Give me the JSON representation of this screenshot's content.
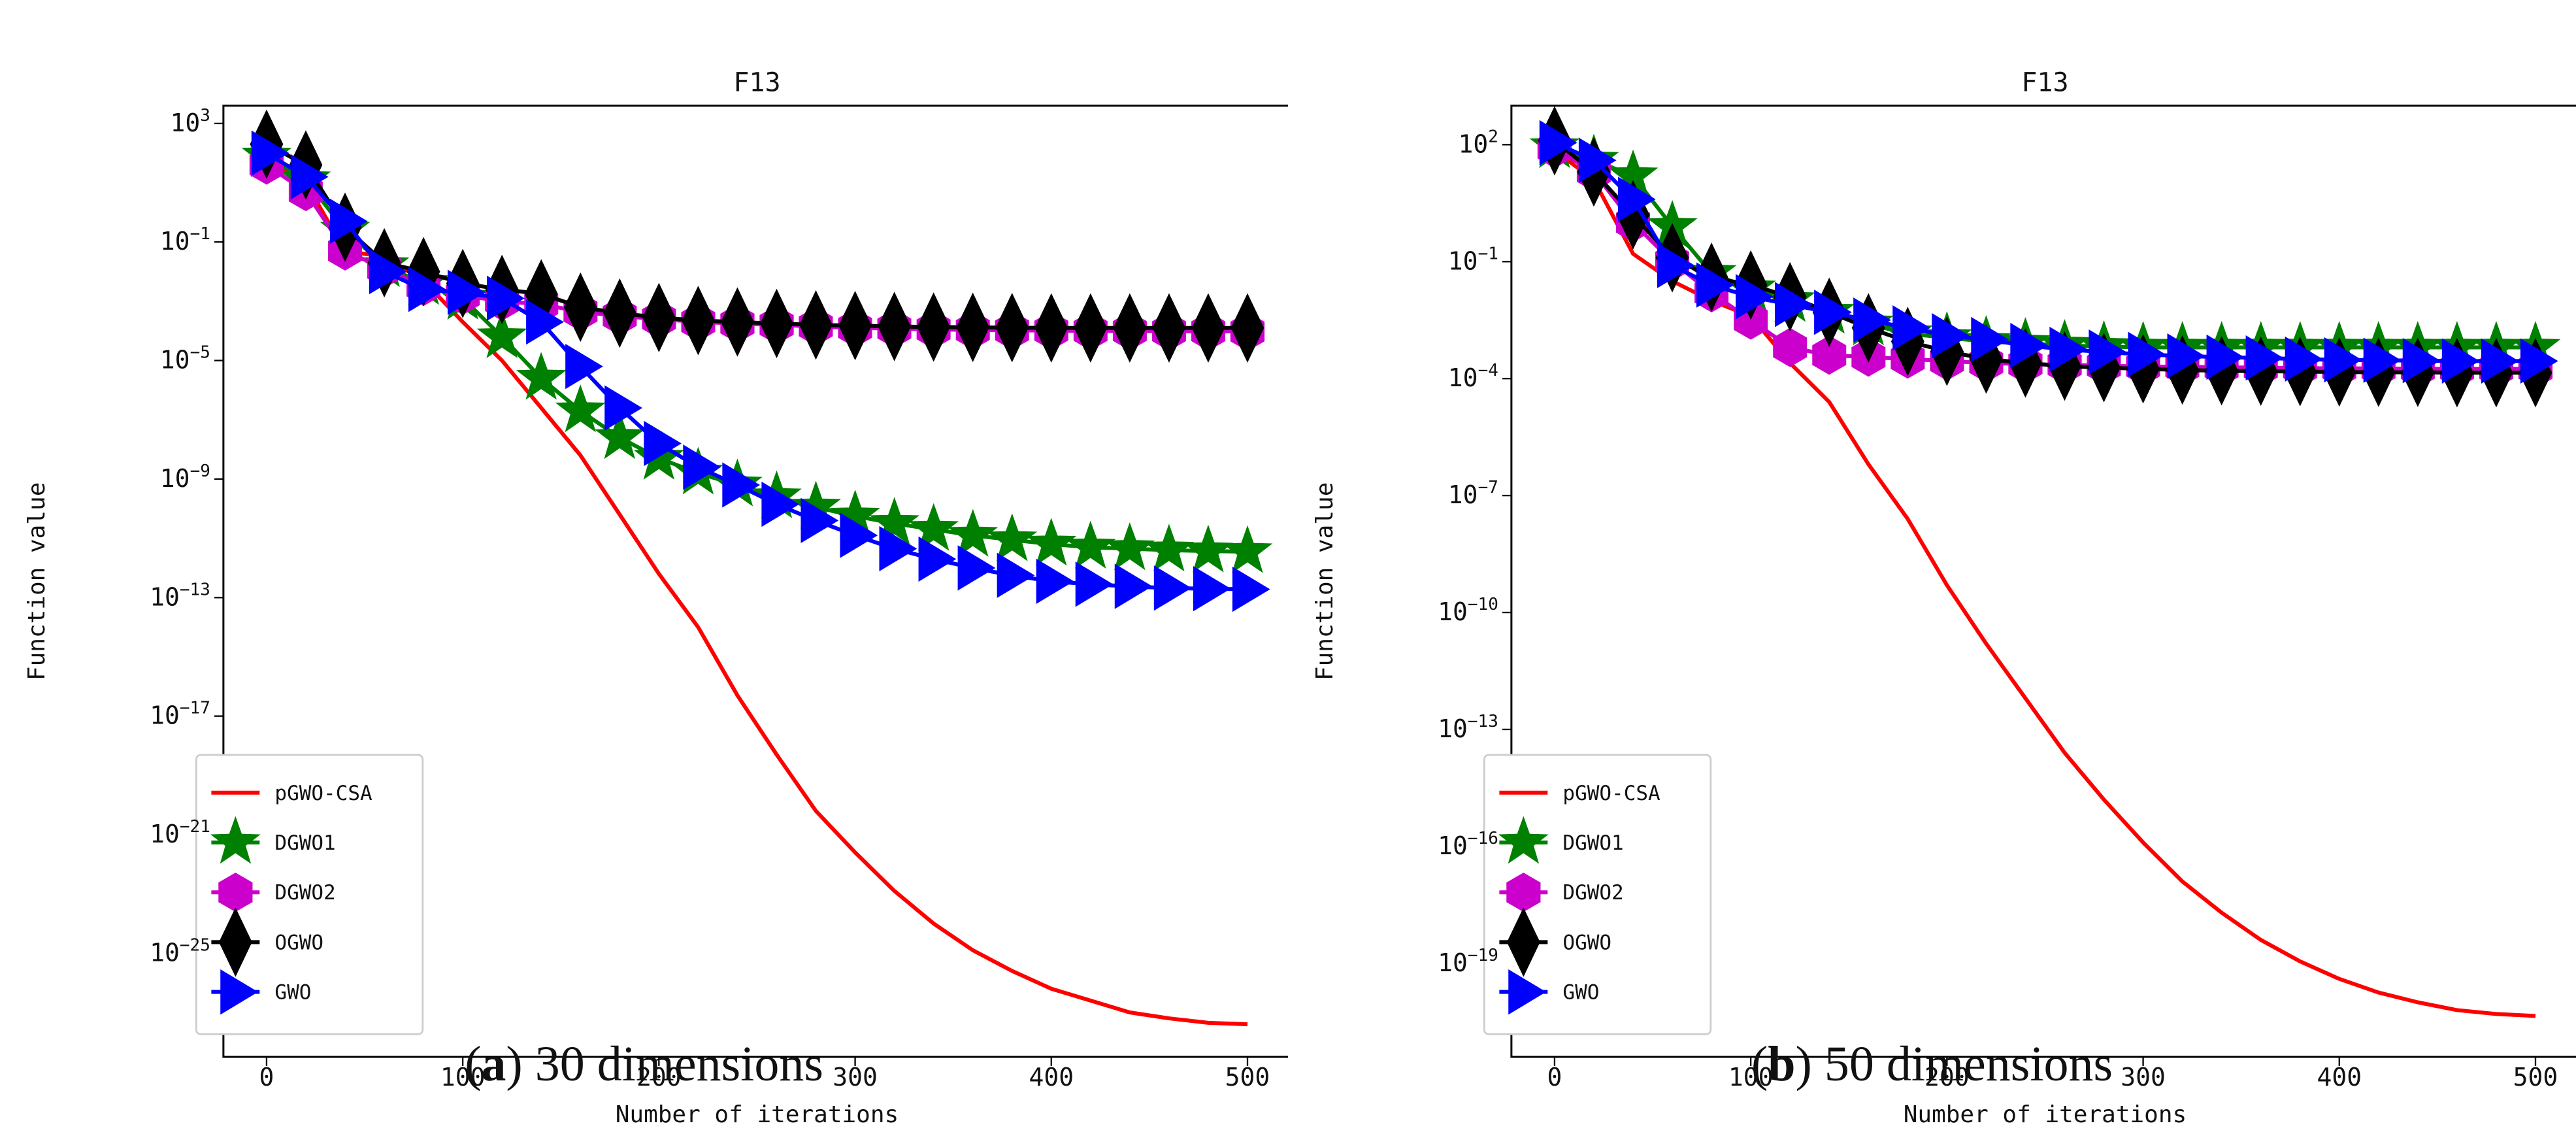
{
  "chart_data": [
    {
      "type": "line",
      "title": "F13",
      "xlabel": "Number of iterations",
      "ylabel": "Function value",
      "yscale": "log",
      "xlim": [
        -22,
        522
      ],
      "ylim_exp": [
        -28.5,
        3.6
      ],
      "xticks": [
        0,
        100,
        200,
        300,
        400,
        500
      ],
      "ytick_exponents": [
        3,
        -1,
        -5,
        -9,
        -13,
        -17,
        -21,
        -25
      ],
      "grid": false,
      "legend_position": "lower-left",
      "caption": {
        "letter": "a",
        "text": " 30 dimensions"
      },
      "series": [
        {
          "name": "pGWO-CSA",
          "color": "#ff0000",
          "marker": "none",
          "x": [
            0,
            20,
            40,
            60,
            80,
            100,
            120,
            140,
            160,
            180,
            200,
            220,
            240,
            260,
            280,
            300,
            320,
            340,
            360,
            380,
            400,
            420,
            440,
            460,
            480,
            500
          ],
          "log10": [
            1.8,
            1.0,
            -1.3,
            -1.5,
            -2.3,
            -3.7,
            -5.0,
            -6.6,
            -8.2,
            -10.2,
            -12.2,
            -14.0,
            -16.3,
            -18.3,
            -20.2,
            -21.6,
            -22.9,
            -24.0,
            -24.9,
            -25.6,
            -26.2,
            -26.6,
            -27.0,
            -27.2,
            -27.35,
            -27.4
          ]
        },
        {
          "name": "DGWO1",
          "color": "#008000",
          "marker": "star",
          "x": [
            0,
            20,
            40,
            60,
            80,
            100,
            120,
            140,
            160,
            180,
            200,
            220,
            240,
            260,
            280,
            300,
            320,
            340,
            360,
            380,
            400,
            420,
            440,
            460,
            480,
            500
          ],
          "log10": [
            1.9,
            1.1,
            -0.6,
            -1.8,
            -2.4,
            -2.9,
            -4.2,
            -5.6,
            -6.7,
            -7.6,
            -8.3,
            -8.8,
            -9.2,
            -9.6,
            -9.95,
            -10.25,
            -10.5,
            -10.7,
            -10.9,
            -11.05,
            -11.2,
            -11.3,
            -11.35,
            -11.4,
            -11.43,
            -11.45
          ]
        },
        {
          "name": "DGWO2",
          "color": "#cc00cc",
          "marker": "hexagon",
          "x": [
            0,
            20,
            40,
            60,
            80,
            100,
            120,
            140,
            160,
            180,
            200,
            220,
            240,
            260,
            280,
            300,
            320,
            340,
            360,
            380,
            400,
            420,
            440,
            460,
            480,
            500
          ],
          "log10": [
            1.6,
            0.7,
            -1.3,
            -1.9,
            -2.5,
            -2.8,
            -3.0,
            -3.1,
            -3.35,
            -3.5,
            -3.6,
            -3.7,
            -3.75,
            -3.8,
            -3.85,
            -3.9,
            -3.92,
            -3.95,
            -3.97,
            -3.98,
            -3.99,
            -4.0,
            -4.0,
            -4.01,
            -4.01,
            -4.02
          ]
        },
        {
          "name": "OGWO",
          "color": "#000000",
          "marker": "thin_diamond",
          "x": [
            0,
            20,
            40,
            60,
            80,
            100,
            120,
            140,
            160,
            180,
            200,
            220,
            240,
            260,
            280,
            300,
            320,
            340,
            360,
            380,
            400,
            420,
            440,
            460,
            480,
            500
          ],
          "log10": [
            2.3,
            1.6,
            -0.5,
            -1.7,
            -2.0,
            -2.4,
            -2.6,
            -2.75,
            -3.2,
            -3.4,
            -3.55,
            -3.65,
            -3.7,
            -3.75,
            -3.8,
            -3.82,
            -3.85,
            -3.87,
            -3.88,
            -3.89,
            -3.9,
            -3.9,
            -3.9,
            -3.9,
            -3.9,
            -3.9
          ]
        },
        {
          "name": "GWO",
          "color": "#0000ff",
          "marker": "triangle_right",
          "x": [
            0,
            20,
            40,
            60,
            80,
            100,
            120,
            140,
            160,
            180,
            200,
            220,
            240,
            260,
            280,
            300,
            320,
            340,
            360,
            380,
            400,
            420,
            440,
            460,
            480,
            500
          ],
          "log10": [
            2.0,
            1.2,
            -0.3,
            -2.0,
            -2.6,
            -2.7,
            -2.9,
            -3.7,
            -5.2,
            -6.6,
            -7.8,
            -8.6,
            -9.2,
            -9.85,
            -10.4,
            -10.9,
            -11.35,
            -11.7,
            -12.0,
            -12.25,
            -12.45,
            -12.55,
            -12.62,
            -12.68,
            -12.7,
            -12.72
          ]
        }
      ]
    },
    {
      "type": "line",
      "title": "F13",
      "xlabel": "Number of iterations",
      "ylabel": "Function value",
      "yscale": "log",
      "xlim": [
        -22,
        522
      ],
      "ylim_exp": [
        -21.4,
        3.0
      ],
      "xticks": [
        0,
        100,
        200,
        300,
        400,
        500
      ],
      "ytick_exponents": [
        2,
        -1,
        -4,
        -7,
        -10,
        -13,
        -16,
        -19
      ],
      "grid": false,
      "legend_position": "lower-left",
      "caption": {
        "letter": "b",
        "text": " 50 dimensions"
      },
      "series": [
        {
          "name": "pGWO-CSA",
          "color": "#ff0000",
          "marker": "none",
          "x": [
            0,
            20,
            40,
            60,
            80,
            100,
            120,
            140,
            160,
            180,
            200,
            220,
            240,
            260,
            280,
            300,
            320,
            340,
            360,
            380,
            400,
            420,
            440,
            460,
            480,
            500
          ],
          "log10": [
            1.85,
            1.1,
            -0.8,
            -1.5,
            -2.0,
            -2.4,
            -3.6,
            -4.6,
            -6.2,
            -7.6,
            -9.3,
            -10.8,
            -12.2,
            -13.6,
            -14.8,
            -15.9,
            -16.9,
            -17.7,
            -18.4,
            -18.95,
            -19.4,
            -19.75,
            -20.0,
            -20.2,
            -20.3,
            -20.35
          ]
        },
        {
          "name": "DGWO1",
          "color": "#008000",
          "marker": "star",
          "x": [
            0,
            20,
            40,
            60,
            80,
            100,
            120,
            140,
            160,
            180,
            200,
            220,
            240,
            260,
            280,
            300,
            320,
            340,
            360,
            380,
            400,
            420,
            440,
            460,
            480,
            500
          ],
          "log10": [
            1.95,
            1.6,
            1.2,
            -0.1,
            -1.3,
            -1.7,
            -2.0,
            -2.3,
            -2.6,
            -2.85,
            -2.95,
            -3.05,
            -3.1,
            -3.15,
            -3.18,
            -3.2,
            -3.2,
            -3.2,
            -3.2,
            -3.2,
            -3.2,
            -3.2,
            -3.2,
            -3.2,
            -3.2,
            -3.2
          ]
        },
        {
          "name": "DGWO2",
          "color": "#cc00cc",
          "marker": "hexagon",
          "x": [
            0,
            20,
            40,
            60,
            80,
            100,
            120,
            140,
            160,
            180,
            200,
            220,
            240,
            260,
            280,
            300,
            320,
            340,
            360,
            380,
            400,
            420,
            440,
            460,
            480,
            500
          ],
          "log10": [
            1.9,
            1.3,
            0.0,
            -1.0,
            -1.8,
            -2.5,
            -3.2,
            -3.4,
            -3.45,
            -3.5,
            -3.55,
            -3.6,
            -3.63,
            -3.65,
            -3.67,
            -3.69,
            -3.7,
            -3.71,
            -3.72,
            -3.73,
            -3.74,
            -3.74,
            -3.75,
            -3.75,
            -3.75,
            -3.75
          ]
        },
        {
          "name": "OGWO",
          "color": "#000000",
          "marker": "thin_diamond",
          "x": [
            0,
            20,
            40,
            60,
            80,
            100,
            120,
            140,
            160,
            180,
            200,
            220,
            240,
            260,
            280,
            300,
            320,
            340,
            360,
            380,
            400,
            420,
            440,
            460,
            480,
            500
          ],
          "log10": [
            2.1,
            1.3,
            0.2,
            -0.9,
            -1.4,
            -1.6,
            -1.9,
            -2.3,
            -2.7,
            -3.05,
            -3.3,
            -3.5,
            -3.6,
            -3.68,
            -3.72,
            -3.75,
            -3.78,
            -3.8,
            -3.81,
            -3.82,
            -3.83,
            -3.84,
            -3.84,
            -3.85,
            -3.85,
            -3.85
          ]
        },
        {
          "name": "GWO",
          "color": "#0000ff",
          "marker": "triangle_right",
          "x": [
            0,
            20,
            40,
            60,
            80,
            100,
            120,
            140,
            160,
            180,
            200,
            220,
            240,
            260,
            280,
            300,
            320,
            340,
            360,
            380,
            400,
            420,
            440,
            460,
            480,
            500
          ],
          "log10": [
            2.05,
            1.6,
            0.6,
            -1.1,
            -1.6,
            -1.9,
            -2.1,
            -2.3,
            -2.5,
            -2.7,
            -2.9,
            -3.0,
            -3.15,
            -3.25,
            -3.32,
            -3.38,
            -3.42,
            -3.45,
            -3.47,
            -3.5,
            -3.52,
            -3.53,
            -3.54,
            -3.55,
            -3.55,
            -3.55
          ]
        }
      ]
    }
  ]
}
